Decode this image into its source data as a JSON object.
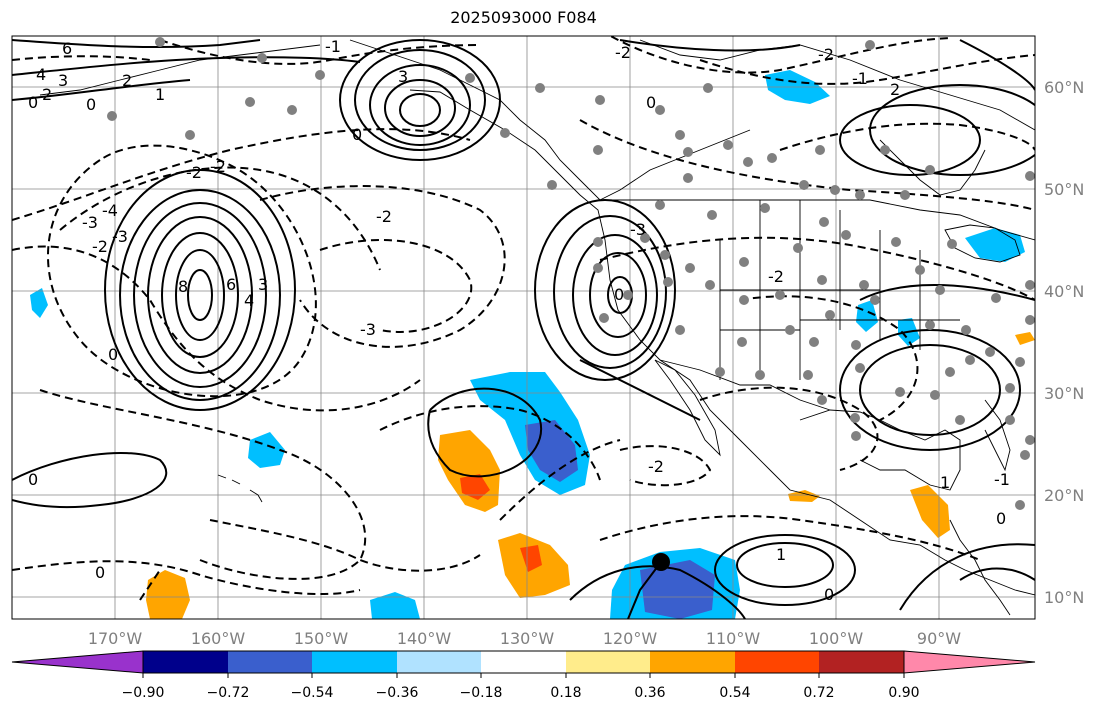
{
  "title": "2025093000 F084",
  "map": {
    "lon_ticks": [
      "170°W",
      "160°W",
      "150°W",
      "140°W",
      "130°W",
      "120°W",
      "110°W",
      "100°W",
      "90°W"
    ],
    "lat_ticks": [
      "60°N",
      "50°N",
      "40°N",
      "30°N",
      "20°N",
      "10°N"
    ],
    "contour_labels": [
      "6",
      "4",
      "3",
      "2",
      "2",
      "1",
      "0",
      "0",
      "-1",
      "-2",
      "-3",
      "-2",
      "-2",
      "-3",
      "8",
      "6",
      "4",
      "3",
      "-2",
      "3",
      "0",
      "-3",
      "0",
      "-2",
      "0",
      "-2",
      "-1",
      "-2",
      "1",
      "0",
      "1",
      "0",
      "-1",
      "0",
      "0",
      "-2",
      "2",
      "-4",
      "-3",
      "0"
    ]
  },
  "colorbar": {
    "ticks": [
      "−0.90",
      "−0.72",
      "−0.54",
      "−0.36",
      "−0.18",
      "0.18",
      "0.36",
      "0.54",
      "0.72",
      "0.90"
    ],
    "colors": [
      "#9932cc",
      "#00008b",
      "#3a5fcd",
      "#00bfff",
      "#b0e2ff",
      "#ffffff",
      "#ffec8b",
      "#ffa500",
      "#ff4500",
      "#b22222",
      "#ff88aa"
    ]
  }
}
